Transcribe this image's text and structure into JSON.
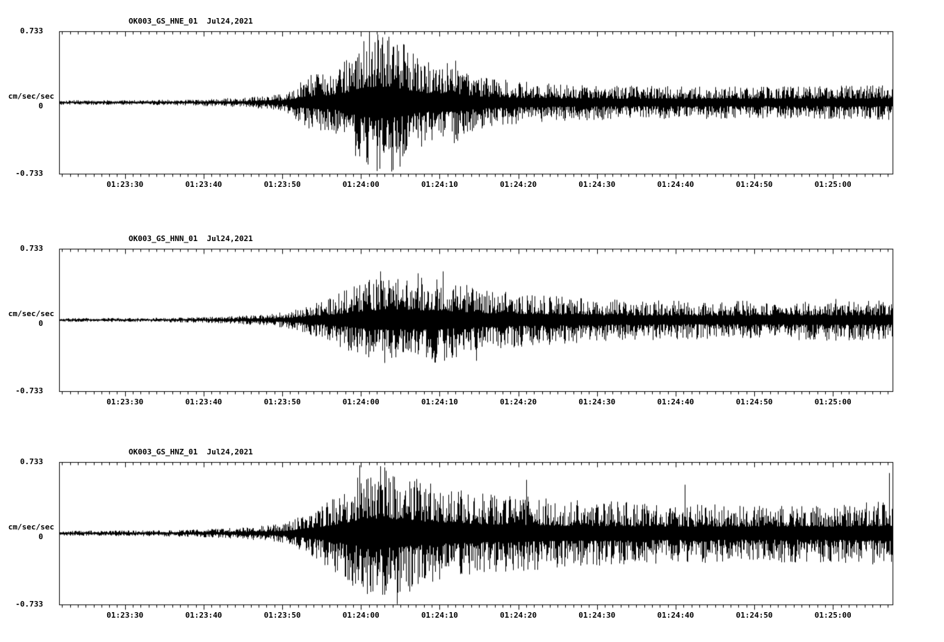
{
  "page": {
    "background": "#ffffff",
    "trace_color": "#000000",
    "text_color": "#000000"
  },
  "chart_data": [
    {
      "type": "line",
      "title": "OK003_GS_HNE_01  Jul24,2021",
      "ylabel": "cm/sec/sec",
      "yticks": [
        "0.733",
        "0",
        "-0.733"
      ],
      "ylim": [
        -0.733,
        0.733
      ],
      "grid": false,
      "legend": "none",
      "xticklabels": [
        "01:23:30",
        "01:23:40",
        "01:23:50",
        "01:24:00",
        "01:24:10",
        "01:24:20",
        "01:24:30",
        "01:24:40",
        "01:24:50",
        "01:25:00"
      ],
      "x_first_tick_frac": 0.079,
      "x_tick_spacing_frac": 0.0943,
      "x_minor_per_major": 10,
      "amplitude_envelope": [
        [
          0,
          0.025
        ],
        [
          0.1,
          0.025
        ],
        [
          0.17,
          0.035
        ],
        [
          0.22,
          0.05
        ],
        [
          0.27,
          0.09
        ],
        [
          0.3,
          0.28
        ],
        [
          0.33,
          0.32
        ],
        [
          0.355,
          0.55
        ],
        [
          0.375,
          0.72
        ],
        [
          0.4,
          0.7
        ],
        [
          0.415,
          0.6
        ],
        [
          0.44,
          0.42
        ],
        [
          0.475,
          0.42
        ],
        [
          0.5,
          0.28
        ],
        [
          0.55,
          0.22
        ],
        [
          0.6,
          0.19
        ],
        [
          0.7,
          0.17
        ],
        [
          0.8,
          0.17
        ],
        [
          0.9,
          0.17
        ],
        [
          1,
          0.18
        ]
      ],
      "peak_spikes": [
        [
          0.372,
          0.73,
          1
        ],
        [
          0.382,
          0.7,
          1
        ],
        [
          0.398,
          0.71,
          -1
        ],
        [
          0.408,
          0.66,
          -1
        ],
        [
          0.355,
          0.55,
          -1
        ],
        [
          0.475,
          0.43,
          1
        ]
      ]
    },
    {
      "type": "line",
      "title": "OK003_GS_HNN_01  Jul24,2021",
      "ylabel": "cm/sec/sec",
      "yticks": [
        "0.733",
        "0",
        "-0.733"
      ],
      "ylim": [
        -0.733,
        0.733
      ],
      "grid": false,
      "legend": "none",
      "xticklabels": [
        "01:23:30",
        "01:23:40",
        "01:23:50",
        "01:24:00",
        "01:24:10",
        "01:24:20",
        "01:24:30",
        "01:24:40",
        "01:24:50",
        "01:25:00"
      ],
      "x_first_tick_frac": 0.079,
      "x_tick_spacing_frac": 0.0943,
      "x_minor_per_major": 10,
      "amplitude_envelope": [
        [
          0,
          0.02
        ],
        [
          0.1,
          0.02
        ],
        [
          0.17,
          0.03
        ],
        [
          0.22,
          0.045
        ],
        [
          0.27,
          0.08
        ],
        [
          0.31,
          0.18
        ],
        [
          0.33,
          0.25
        ],
        [
          0.36,
          0.38
        ],
        [
          0.385,
          0.45
        ],
        [
          0.42,
          0.42
        ],
        [
          0.45,
          0.45
        ],
        [
          0.48,
          0.38
        ],
        [
          0.52,
          0.3
        ],
        [
          0.57,
          0.27
        ],
        [
          0.65,
          0.22
        ],
        [
          0.75,
          0.2
        ],
        [
          0.85,
          0.2
        ],
        [
          0.93,
          0.22
        ],
        [
          1,
          0.2
        ]
      ],
      "peak_spikes": [
        [
          0.385,
          0.5,
          1
        ],
        [
          0.43,
          0.48,
          1
        ],
        [
          0.46,
          0.5,
          1
        ],
        [
          0.5,
          0.42,
          -1
        ]
      ]
    },
    {
      "type": "line",
      "title": "OK003_GS_HNZ_01  Jul24,2021",
      "ylabel": "cm/sec/sec",
      "yticks": [
        "0.733",
        "0",
        "-0.733"
      ],
      "ylim": [
        -0.733,
        0.733
      ],
      "grid": false,
      "legend": "none",
      "xticklabels": [
        "01:23:30",
        "01:23:40",
        "01:23:50",
        "01:24:00",
        "01:24:10",
        "01:24:20",
        "01:24:30",
        "01:24:40",
        "01:24:50",
        "01:25:00"
      ],
      "x_first_tick_frac": 0.079,
      "x_tick_spacing_frac": 0.0943,
      "x_minor_per_major": 10,
      "amplitude_envelope": [
        [
          0,
          0.025
        ],
        [
          0.1,
          0.03
        ],
        [
          0.17,
          0.04
        ],
        [
          0.22,
          0.06
        ],
        [
          0.27,
          0.1
        ],
        [
          0.31,
          0.28
        ],
        [
          0.34,
          0.45
        ],
        [
          0.36,
          0.6
        ],
        [
          0.385,
          0.7
        ],
        [
          0.41,
          0.62
        ],
        [
          0.45,
          0.5
        ],
        [
          0.5,
          0.42
        ],
        [
          0.55,
          0.4
        ],
        [
          0.6,
          0.35
        ],
        [
          0.7,
          0.32
        ],
        [
          0.8,
          0.3
        ],
        [
          0.9,
          0.3
        ],
        [
          1,
          0.33
        ]
      ],
      "peak_spikes": [
        [
          0.36,
          0.7,
          1
        ],
        [
          0.385,
          0.69,
          1
        ],
        [
          0.405,
          0.73,
          -1
        ],
        [
          0.42,
          0.6,
          -1
        ],
        [
          0.56,
          0.55,
          1
        ],
        [
          0.75,
          0.5,
          1
        ],
        [
          0.995,
          0.62,
          1
        ]
      ]
    }
  ]
}
